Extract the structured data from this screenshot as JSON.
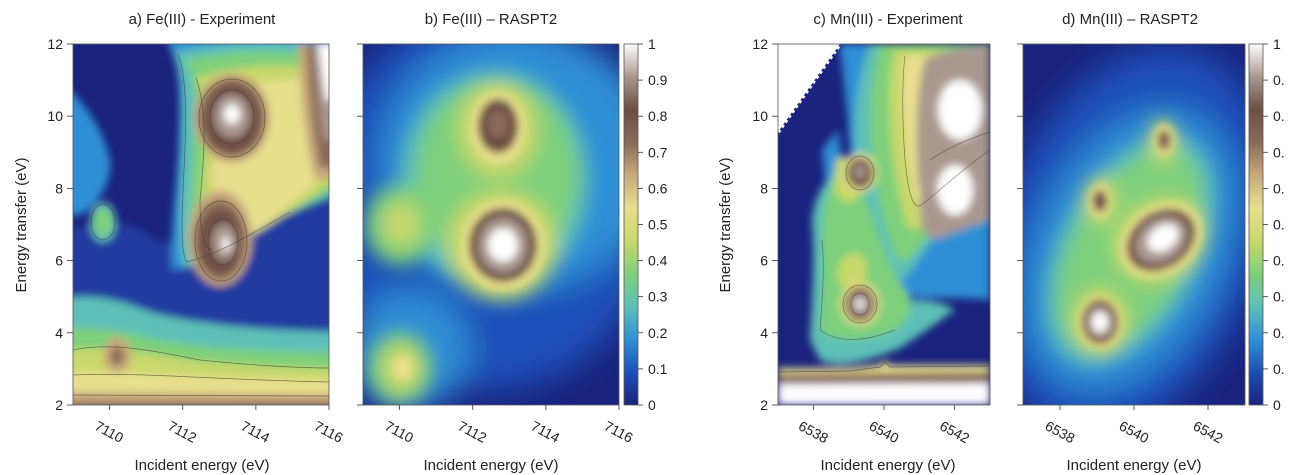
{
  "colorbar": {
    "ticks": [
      "1",
      "0.9",
      "0.8",
      "0.7",
      "0.6",
      "0.5",
      "0.4",
      "0.3",
      "0.2",
      "0.1",
      "0"
    ],
    "ticks_cropped": [
      "1",
      "0.",
      "0.",
      "0.",
      "0.",
      "0.",
      "0.",
      "0.",
      "0.",
      "0.",
      "0"
    ],
    "colors": [
      "#1a237e",
      "#1d4fb8",
      "#2f8fd6",
      "#5dc0b8",
      "#7ed07a",
      "#c8d86a",
      "#e7df8e",
      "#c9a97a",
      "#8a6a58",
      "#6e4e42",
      "#a99890",
      "#ffffff"
    ]
  },
  "chart_data": [
    {
      "type": "heatmap",
      "title": "a) Fe(III) - Experiment",
      "xlabel": "Incident energy (eV)",
      "ylabel": "Energy transfer (eV)",
      "xlim": [
        7109,
        7116
      ],
      "ylim": [
        2,
        12
      ],
      "xticks": [
        "7110",
        "7112",
        "7114",
        "7116"
      ],
      "yticks": [
        "2",
        "4",
        "6",
        "8",
        "10",
        "12"
      ],
      "contours": true,
      "features": [
        {
          "x": 7113.2,
          "y": 10.1,
          "intensity": 0.85
        },
        {
          "x": 7113.0,
          "y": 6.7,
          "intensity": 0.7
        },
        {
          "x": 7116.0,
          "y": 11.0,
          "intensity": 0.9
        },
        {
          "x": 7110.2,
          "y": 3.1,
          "intensity": 0.5
        },
        {
          "x": 7110.2,
          "y": 6.9,
          "intensity": 0.3
        },
        {
          "x": 7111.5,
          "y": 3.0,
          "intensity": 0.45
        }
      ]
    },
    {
      "type": "heatmap",
      "title": "b) Fe(III) – RASPT2",
      "xlabel": "Incident energy (eV)",
      "ylabel": "",
      "xlim": [
        7109,
        7116
      ],
      "ylim": [
        2,
        12
      ],
      "xticks": [
        "7110",
        "7112",
        "7114",
        "7116"
      ],
      "colorbar_range": [
        0,
        1
      ],
      "features": [
        {
          "x": 7113.2,
          "y": 9.5,
          "intensity": 0.68
        },
        {
          "x": 7113.3,
          "y": 6.3,
          "intensity": 1.0
        },
        {
          "x": 7110.0,
          "y": 3.0,
          "intensity": 0.42
        },
        {
          "x": 7110.0,
          "y": 7.0,
          "intensity": 0.32
        }
      ]
    },
    {
      "type": "heatmap",
      "title": "c) Mn(III) - Experiment",
      "xlabel": "Incident energy (eV)",
      "ylabel": "Energy transfer (eV)",
      "xlim": [
        6537,
        6543
      ],
      "ylim": [
        2,
        12
      ],
      "xticks": [
        "6538",
        "6540",
        "6542"
      ],
      "yticks": [
        "2",
        "4",
        "6",
        "8",
        "10",
        "12"
      ],
      "contours": true,
      "features": [
        {
          "x": 6539.1,
          "y": 4.8,
          "intensity": 0.75
        },
        {
          "x": 6539.1,
          "y": 8.3,
          "intensity": 0.6
        },
        {
          "x": 6541.8,
          "y": 10.5,
          "intensity": 0.85
        },
        {
          "x": 6541.5,
          "y": 7.8,
          "intensity": 0.8
        }
      ]
    },
    {
      "type": "heatmap",
      "title": "d) Mn(III) – RASPT2",
      "xlabel": "Incident energy (eV)",
      "ylabel": "",
      "xlim": [
        6537,
        6543
      ],
      "ylim": [
        2,
        12
      ],
      "xticks": [
        "6538",
        "6540",
        "6542"
      ],
      "colorbar_range": [
        0,
        1
      ],
      "features": [
        {
          "x": 6539.0,
          "y": 4.3,
          "intensity": 1.0
        },
        {
          "x": 6541.2,
          "y": 6.5,
          "intensity": 1.0
        },
        {
          "x": 6539.0,
          "y": 7.6,
          "intensity": 0.65
        },
        {
          "x": 6540.8,
          "y": 9.3,
          "intensity": 0.6
        }
      ]
    }
  ]
}
